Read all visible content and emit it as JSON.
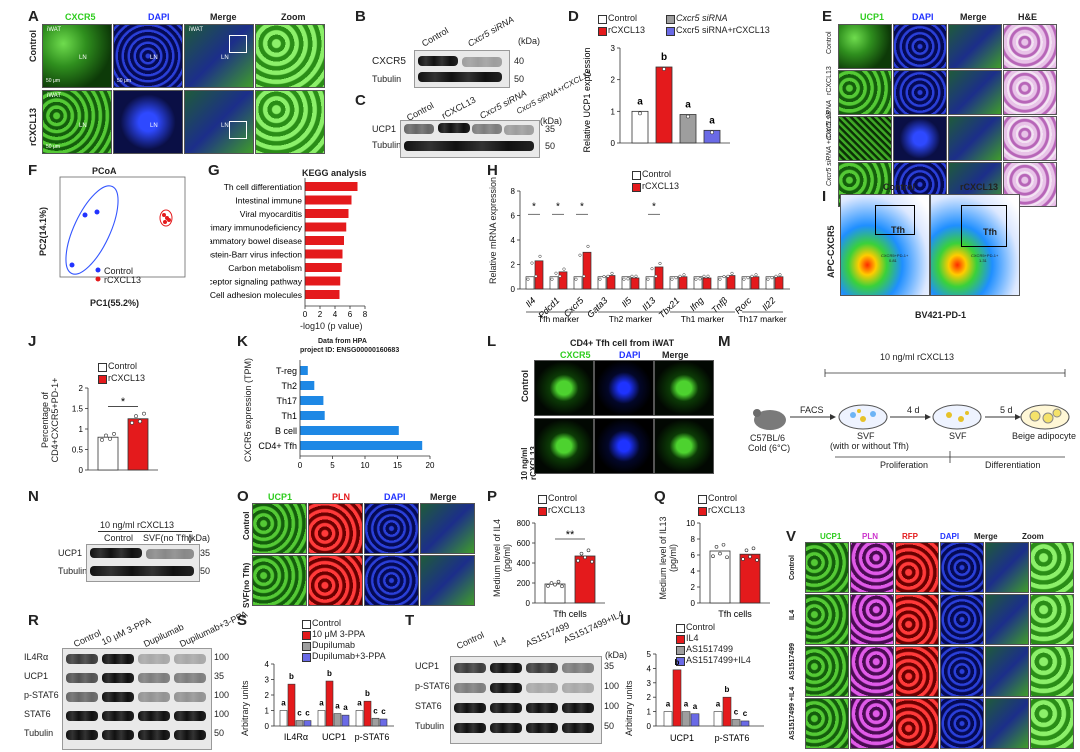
{
  "panels": {
    "A": "A",
    "B": "B",
    "C": "C",
    "D": "D",
    "E": "E",
    "F": "F",
    "G": "G",
    "H": "H",
    "I": "I",
    "J": "J",
    "K": "K",
    "L": "L",
    "M": "M",
    "N": "N",
    "O": "O",
    "P": "P",
    "Q": "Q",
    "R": "R",
    "S": "S",
    "T": "T",
    "U": "U",
    "V": "V"
  },
  "A": {
    "cols": [
      "CXCR5",
      "DAPI",
      "Merge",
      "Zoom"
    ],
    "rows": [
      "Control",
      "rCXCL13"
    ],
    "iwat": "iWAT",
    "ln": "LN",
    "scale": "50 μm"
  },
  "B": {
    "lanes": [
      "Control",
      "Cxcr5 siRNA"
    ],
    "kda": "(kDa)",
    "bands": [
      "CXCR5",
      "Tubulin"
    ],
    "marks": [
      "40",
      "50"
    ]
  },
  "C": {
    "lanes": [
      "Control",
      "rCXCL13",
      "Cxcr5 siRNA",
      "Cxcr5 siRNA+rCXCL13"
    ],
    "kda": "(kDa)",
    "bands": [
      "UCP1",
      "Tubulin"
    ],
    "marks": [
      "35",
      "50"
    ]
  },
  "D": {
    "legend": [
      "Control",
      "Cxcr5 siRNA",
      "rCXCL13",
      "Cxcr5 siRNA+rCXCL13"
    ],
    "ylabel": "Relative UCP1 expression",
    "letters": [
      "a",
      "b",
      "a",
      "a"
    ]
  },
  "E": {
    "cols": [
      "UCP1",
      "DAPI",
      "Merge",
      "H&E"
    ],
    "rows": [
      "Control",
      "rCXCL13",
      "Cxcr5 siRNA",
      "Cxcr5 siRNA +rCXCL13"
    ]
  },
  "F": {
    "title": "PCoA",
    "xlabel": "PC1(55.2%)",
    "ylabel": "PC2(14.1%)",
    "legend": [
      "Control",
      "rCXCL13"
    ]
  },
  "G": {
    "title": "KEGG analysis",
    "xlabel": "-log10 (p value)"
  },
  "H": {
    "ylabel": "Relative mRNA expression",
    "legend": [
      "Control",
      "rCXCL13"
    ],
    "groups": [
      "Tfh marker",
      "Th2 marker",
      "Th1 marker",
      "Th17 marker"
    ],
    "star": "*"
  },
  "I": {
    "cols": [
      "Control",
      "rCXCL13"
    ],
    "gate": "Tfh",
    "ylabel": "APC-CXCR5",
    "xlabel": "BV421-PD-1",
    "gate_text": [
      "CXCR5+PD-1+",
      "0.81",
      "CXCR5+PD-1+",
      "1.31"
    ]
  },
  "J": {
    "legend": [
      "Control",
      "rCXCL13"
    ],
    "ylabel": "Percentage of CD4+CXCR5+PD-1+",
    "star": "*"
  },
  "K": {
    "title1": "Data from HPA",
    "title2": "project ID: ENSG00000160683",
    "ylabel": "CXCR5 expression (TPM)"
  },
  "L": {
    "title": "CD4+ Tfh cell from iWAT",
    "cols": [
      "CXCR5",
      "DAPI",
      "Merge"
    ],
    "rows": [
      "Control",
      "10 ng/ml rCXCL13"
    ],
    "scale": "10 μm"
  },
  "M": {
    "top": "10 ng/ml rCXCL13",
    "mouse": [
      "C57BL/6",
      "Cold (6°C)"
    ],
    "facs": "FACS",
    "d4": "4 d",
    "d5": "5 d",
    "svf1": [
      "SVF",
      "(with or without Tfh)"
    ],
    "svf2": "SVF",
    "beige": "Beige adipocyte",
    "prolif": "Proliferation",
    "diff": "Differentiation"
  },
  "N": {
    "top": "10 ng/ml rCXCL13",
    "lanes": [
      "Control",
      "SVF(no Tfh)"
    ],
    "kda": "(kDa)",
    "bands": [
      "UCP1",
      "Tubulin"
    ],
    "marks": [
      "35",
      "50"
    ]
  },
  "O": {
    "cols": [
      "UCP1",
      "PLN",
      "DAPI",
      "Merge"
    ],
    "rows": [
      "Control",
      "SVF(no Tfh)"
    ]
  },
  "P": {
    "legend": [
      "Control",
      "rCXCL13"
    ],
    "ylabel": "Medium level of IL4 (pg/ml)",
    "xlabel": "Tfh cells",
    "star": "**"
  },
  "Q": {
    "legend": [
      "Control",
      "rCXCL13"
    ],
    "ylabel": "Medium level of IL13 (pg/ml)",
    "xlabel": "Tfh cells"
  },
  "R": {
    "lanes": [
      "Control",
      "10 μM 3-PPA",
      "Dupilumab",
      "Dupilumab+3-PPA"
    ],
    "bands": [
      "IL4Rα",
      "UCP1",
      "p-STAT6",
      "STAT6",
      "Tubulin"
    ],
    "marks": [
      "100",
      "35",
      "100",
      "100",
      "50"
    ]
  },
  "S": {
    "legend": [
      "Control",
      "10 μM 3-PPA",
      "Dupilumab",
      "Dupilumab+3-PPA"
    ],
    "ylabel": "Arbitrary units",
    "groups": [
      "IL4Rα",
      "UCP1",
      "p-STAT6"
    ],
    "letters": [
      "a",
      "b",
      "c",
      "c",
      "a",
      "b",
      "a",
      "a",
      "a",
      "b",
      "c",
      "c"
    ]
  },
  "T": {
    "lanes": [
      "Control",
      "IL4",
      "AS1517499",
      "AS1517499+IL4"
    ],
    "kda": "(kDa)",
    "bands": [
      "UCP1",
      "p-STAT6",
      "STAT6",
      "Tubulin"
    ],
    "marks": [
      "35",
      "100",
      "100",
      "50"
    ]
  },
  "U": {
    "legend": [
      "Control",
      "IL4",
      "AS1517499",
      "AS1517499+IL4"
    ],
    "ylabel": "Arbitrary units",
    "groups": [
      "UCP1",
      "p-STAT6"
    ],
    "letters": [
      "a",
      "b",
      "a",
      "a",
      "a",
      "b",
      "c",
      "c"
    ]
  },
  "V": {
    "cols": [
      "UCP1",
      "PLN",
      "RFP",
      "DAPI",
      "Merge",
      "Zoom"
    ],
    "rows": [
      "Control",
      "IL4",
      "AS1517499",
      "AS1517499 +IL4"
    ]
  },
  "colors": {
    "control": "#ffffff",
    "treat": "#e41a1c",
    "gray": "#9e9e9e",
    "blue": "#6a6ae6",
    "kegg": "#e41a1c",
    "hpa": "#1e88e5"
  },
  "chart_data": [
    {
      "type": "bar",
      "panel": "D",
      "categories": [
        "Control",
        "rCXCL13",
        "Cxcr5 siRNA",
        "Cxcr5 siRNA+rCXCL13"
      ],
      "values": [
        1.0,
        2.4,
        0.9,
        0.4
      ],
      "ylabel": "Relative UCP1 expression",
      "ylim": [
        0,
        3
      ],
      "yticks": [
        0,
        1,
        2,
        3
      ]
    },
    {
      "type": "bar",
      "panel": "G",
      "orientation": "horizontal",
      "title": "KEGG analysis",
      "categories": [
        "Th cell differentiation",
        "Intestinal immune",
        "Viral myocarditis",
        "Primary immunodeficiency",
        "Inflammatory bowel disease",
        "Epstein-Barr virus infection",
        "Carbon metabolism",
        "T cell receptor signaling pathway",
        "Cell adhesion molecules"
      ],
      "values": [
        7.0,
        6.2,
        5.8,
        5.5,
        5.2,
        5.0,
        4.9,
        4.7,
        4.6
      ],
      "xlabel": "-log10 (p value)",
      "xlim": [
        0,
        8
      ],
      "xticks": [
        0,
        2,
        4,
        6,
        8
      ]
    },
    {
      "type": "bar",
      "panel": "H",
      "categories": [
        "Il4",
        "Pdcd1",
        "Cxcr5",
        "Gata3",
        "Il5",
        "Il13",
        "Tbx21",
        "Ifng",
        "Tnfβ",
        "Rorc",
        "Il22"
      ],
      "series": [
        {
          "name": "Control",
          "values": [
            1,
            1,
            1,
            1,
            1,
            1,
            1,
            1,
            1,
            1,
            1
          ]
        },
        {
          "name": "rCXCL13",
          "values": [
            2.3,
            1.4,
            3.0,
            1.1,
            0.9,
            1.8,
            1.0,
            0.9,
            1.1,
            1.0,
            1.0
          ]
        }
      ],
      "ylim": [
        0,
        8
      ],
      "yticks": [
        0,
        2,
        4,
        6,
        8
      ]
    },
    {
      "type": "bar",
      "panel": "J",
      "categories": [
        "Control",
        "rCXCL13"
      ],
      "values": [
        0.8,
        1.25
      ],
      "ylim": [
        0,
        2.0
      ],
      "yticks": [
        0,
        0.5,
        1.0,
        1.5,
        2.0
      ]
    },
    {
      "type": "bar",
      "panel": "K",
      "orientation": "horizontal",
      "categories": [
        "T-reg",
        "Th2",
        "Th17",
        "Th1",
        "B cell",
        "CD4+ Tfh"
      ],
      "values": [
        1.2,
        2.2,
        3.6,
        3.8,
        15.2,
        18.8
      ],
      "xlim": [
        0,
        20
      ],
      "xticks": [
        0,
        5,
        10,
        15,
        20
      ]
    },
    {
      "type": "bar",
      "panel": "P",
      "categories": [
        "Control",
        "rCXCL13"
      ],
      "values": [
        190,
        470
      ],
      "xlabel": "Tfh cells",
      "ylim": [
        0,
        800
      ],
      "yticks": [
        0,
        200,
        400,
        600,
        800
      ]
    },
    {
      "type": "bar",
      "panel": "Q",
      "categories": [
        "Control",
        "rCXCL13"
      ],
      "values": [
        6.5,
        6.1
      ],
      "xlabel": "Tfh cells",
      "ylim": [
        0,
        10
      ],
      "yticks": [
        0,
        2,
        4,
        6,
        8,
        10
      ]
    },
    {
      "type": "bar",
      "panel": "S",
      "categories": [
        "IL4Rα",
        "UCP1",
        "p-STAT6"
      ],
      "series": [
        {
          "name": "Control",
          "values": [
            1,
            1,
            1
          ]
        },
        {
          "name": "10 μM 3-PPA",
          "values": [
            2.7,
            2.9,
            1.6
          ]
        },
        {
          "name": "Dupilumab",
          "values": [
            0.35,
            0.8,
            0.5
          ]
        },
        {
          "name": "Dupilumab+3-PPA",
          "values": [
            0.35,
            0.7,
            0.45
          ]
        }
      ],
      "ylim": [
        0,
        4
      ],
      "yticks": [
        0,
        1,
        2,
        3,
        4
      ]
    },
    {
      "type": "bar",
      "panel": "U",
      "categories": [
        "UCP1",
        "p-STAT6"
      ],
      "series": [
        {
          "name": "Control",
          "values": [
            1,
            1
          ]
        },
        {
          "name": "IL4",
          "values": [
            3.9,
            2.0
          ]
        },
        {
          "name": "AS1517499",
          "values": [
            1.0,
            0.45
          ]
        },
        {
          "name": "AS1517499+IL4",
          "values": [
            0.85,
            0.35
          ]
        }
      ],
      "ylim": [
        0,
        5
      ],
      "yticks": [
        0,
        1,
        2,
        3,
        4,
        5
      ]
    }
  ]
}
